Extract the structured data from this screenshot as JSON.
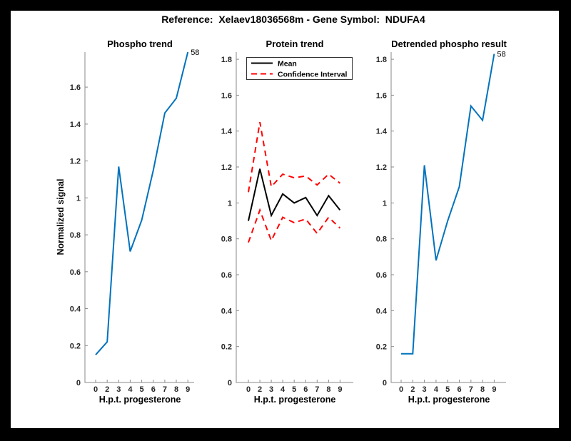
{
  "figure": {
    "title": "Reference:  Xelaev18036568m - Gene Symbol:  NDUFA4",
    "background": "#FFFFFF",
    "matte": "#000000",
    "accent_blue": "#0072BD",
    "accent_red": "#FF0000"
  },
  "chart_data": [
    {
      "type": "line",
      "title": "Phospho trend",
      "xlabel": "H.p.t. progesterone",
      "ylabel": "Normalized signal",
      "x_tick_labels": [
        "0",
        "2",
        "3",
        "4",
        "5",
        "6",
        "7",
        "8",
        "9"
      ],
      "y_ticks": [
        0,
        0.2,
        0.4,
        0.6,
        0.8,
        1,
        1.2,
        1.4,
        1.6
      ],
      "y_tick_labels": [
        "0",
        "0.2",
        "0.4",
        "0.6",
        "0.8",
        "1",
        "1.2",
        "1.4",
        "1.6"
      ],
      "ylim": [
        0,
        1.79
      ],
      "grid": false,
      "series": [
        {
          "name": "phospho-signal",
          "color": "#0072BD",
          "style": "solid",
          "values": [
            0.15,
            0.22,
            1.17,
            0.71,
            0.88,
            1.15,
            1.46,
            1.54,
            1.79
          ]
        }
      ],
      "annotation": {
        "text": "58",
        "attach": "last-point"
      }
    },
    {
      "type": "line",
      "title": "Protein trend",
      "xlabel": "H.p.t. progesterone",
      "ylabel": "",
      "x_tick_labels": [
        "0",
        "2",
        "3",
        "4",
        "5",
        "6",
        "7",
        "8",
        "9"
      ],
      "y_ticks": [
        0,
        0.2,
        0.4,
        0.6,
        0.8,
        1,
        1.2,
        1.4,
        1.6,
        1.8
      ],
      "y_tick_labels": [
        "0",
        "0.2",
        "0.4",
        "0.6",
        "0.8",
        "1",
        "1.2",
        "1.4",
        "1.6",
        "1.8"
      ],
      "ylim": [
        0,
        1.84
      ],
      "grid": false,
      "series": [
        {
          "name": "confidence-upper",
          "color": "#FF0000",
          "style": "dashed",
          "values": [
            1.06,
            1.45,
            1.09,
            1.16,
            1.14,
            1.15,
            1.1,
            1.16,
            1.11
          ]
        },
        {
          "name": "confidence-lower",
          "color": "#FF0000",
          "style": "dashed",
          "values": [
            0.78,
            0.96,
            0.79,
            0.92,
            0.89,
            0.91,
            0.83,
            0.92,
            0.86
          ]
        },
        {
          "name": "mean",
          "color": "#000000",
          "style": "solid",
          "values": [
            0.9,
            1.19,
            0.93,
            1.05,
            1.0,
            1.03,
            0.93,
            1.04,
            0.96
          ]
        }
      ],
      "legend": {
        "position": "top-left",
        "entries": [
          {
            "label": "Mean",
            "color": "#000000",
            "style": "solid"
          },
          {
            "label": "Confidence Interval",
            "color": "#FF0000",
            "style": "dashed"
          }
        ]
      }
    },
    {
      "type": "line",
      "title": "Detrended phospho result",
      "xlabel": "H.p.t. progesterone",
      "ylabel": "",
      "x_tick_labels": [
        "0",
        "2",
        "3",
        "4",
        "5",
        "6",
        "7",
        "8",
        "9"
      ],
      "y_ticks": [
        0,
        0.2,
        0.4,
        0.6,
        0.8,
        1,
        1.2,
        1.4,
        1.6,
        1.8
      ],
      "y_tick_labels": [
        "0",
        "0.2",
        "0.4",
        "0.6",
        "0.8",
        "1",
        "1.2",
        "1.4",
        "1.6",
        "1.8"
      ],
      "ylim": [
        0,
        1.84
      ],
      "grid": false,
      "series": [
        {
          "name": "detrended-phospho-signal",
          "color": "#0072BD",
          "style": "solid",
          "values": [
            0.16,
            0.16,
            1.21,
            0.68,
            0.9,
            1.09,
            1.54,
            1.46,
            1.83
          ]
        }
      ],
      "annotation": {
        "text": "58",
        "attach": "last-point"
      }
    }
  ]
}
